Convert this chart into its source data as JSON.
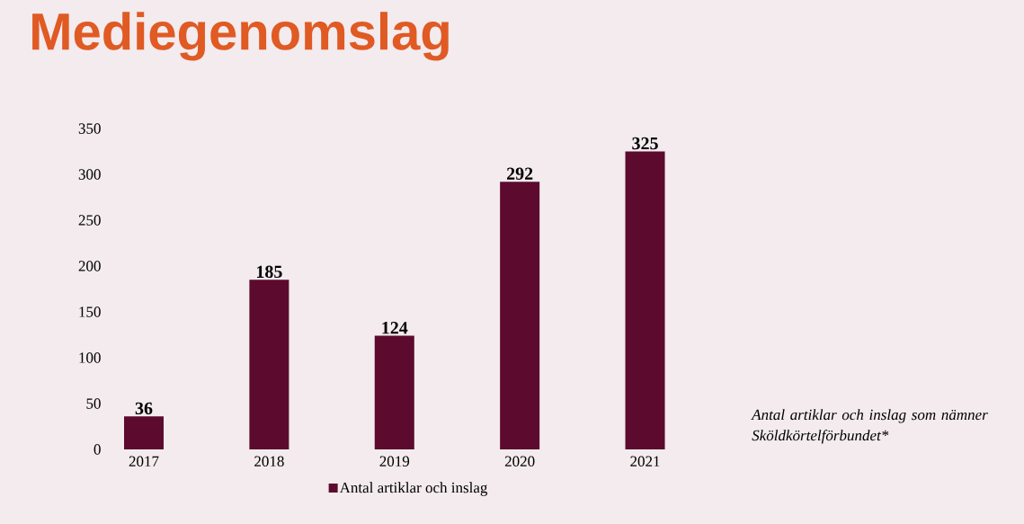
{
  "chart_data": {
    "type": "bar",
    "title": "Mediegenomslag",
    "categories": [
      "2017",
      "2018",
      "2019",
      "2020",
      "2021"
    ],
    "series": [
      {
        "name": "Antal artiklar och inslag",
        "color": "#5c0a2e",
        "values": [
          36,
          185,
          124,
          292,
          325
        ]
      }
    ],
    "ylim": [
      0,
      350
    ],
    "yticks": [
      0,
      50,
      100,
      150,
      200,
      250,
      300,
      350
    ],
    "data_labels": true,
    "legend": "bottom",
    "grid": false,
    "annotations": [
      "Antal artiklar och inslag som nämner Sköldkörtelförbundet*"
    ]
  }
}
